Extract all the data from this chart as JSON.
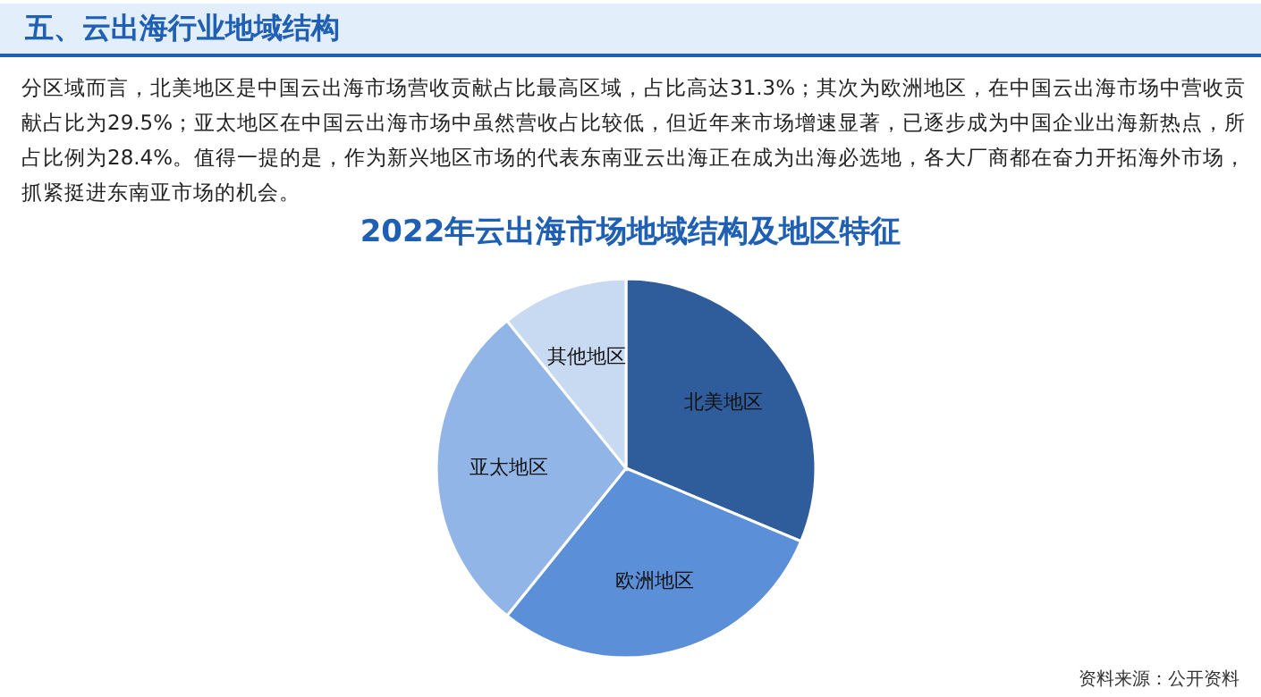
{
  "chart_data": {
    "type": "pie",
    "title": "2022年云出海市场地域结构及地区特征",
    "categories": [
      "北美地区",
      "欧洲地区",
      "亚太地区",
      "其他地区"
    ],
    "values": [
      31.3,
      29.5,
      28.4,
      10.8
    ],
    "colors": [
      "#2f5d9c",
      "#5b8fd8",
      "#91b5e6",
      "#c8daf2"
    ],
    "annotations": [
      "五、云出海行业地域结构",
      "分区域而言，北美地区是中国云出海市场营收贡献占比最高区域，占比高达31.3%；其次为欧洲地区，在中国云出海市场中营收贡献占比为29.5%；亚太地区在中国云出海市场中虽然营收占比较低，但近年来市场增速显著，已逐步成为中国企业出海新热点，所占比例为28.4%。值得一提的是，作为新兴地区市场的代表东南亚云出海正在成为出海必选地，各大厂商都在奋力开拓海外市场，抓紧挺进东南亚市场的机会。",
      "资料来源：公开资料"
    ]
  }
}
